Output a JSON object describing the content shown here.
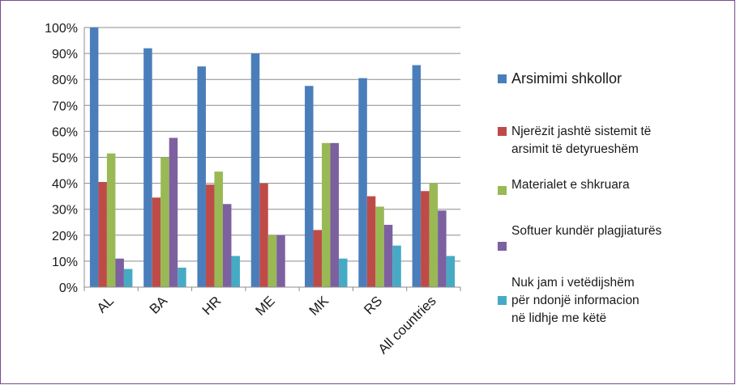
{
  "chart_data": {
    "type": "bar",
    "categories": [
      "AL",
      "BA",
      "HR",
      "ME",
      "MK",
      "RS",
      "All countries"
    ],
    "y_ticks": [
      "0%",
      "10%",
      "20%",
      "30%",
      "40%",
      "50%",
      "60%",
      "70%",
      "80%",
      "90%",
      "100%"
    ],
    "ylim": [
      0,
      100
    ],
    "grid": true,
    "legend_position": "right",
    "series": [
      {
        "name": "Arsimimi shkollor",
        "color": "#4a7ebb",
        "values": [
          100,
          92,
          85,
          90,
          77.5,
          80.5,
          85.5
        ]
      },
      {
        "name": "Njerëzit jashtë sistemit të\narsimit të detyrueshëm",
        "color": "#be4b48",
        "values": [
          40.5,
          34.5,
          39.5,
          40,
          22,
          35,
          37
        ]
      },
      {
        "name": "Materialet e shkruara",
        "color": "#98b954",
        "values": [
          51.5,
          50,
          44.5,
          20,
          55.5,
          31,
          40
        ]
      },
      {
        "name": "Softuer kundër plagjiaturës",
        "color": "#7d60a0",
        "values": [
          11,
          57.5,
          32,
          20,
          55.5,
          24,
          29.5
        ]
      },
      {
        "name": "Nuk jam i vetëdijshëm\npër ndonjë informacion\nnë lidhje me këtë",
        "color": "#46aac5",
        "values": [
          7,
          7.5,
          12,
          0,
          11,
          16,
          12
        ]
      }
    ]
  }
}
